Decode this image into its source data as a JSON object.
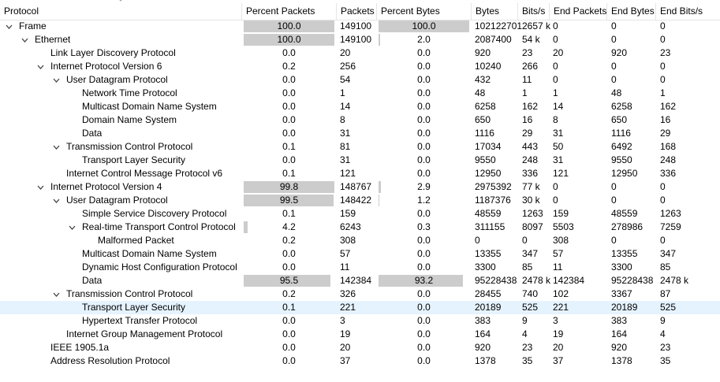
{
  "columns": [
    "Protocol",
    "Percent Packets",
    "Packets",
    "Percent Bytes",
    "Bytes",
    "Bits/s",
    "End Packets",
    "End Bytes",
    "End Bits/s"
  ],
  "rows": [
    {
      "level": 0,
      "expanded": true,
      "protocol": "Frame",
      "pct_packets": "100.0",
      "pct_packets_fill": 100,
      "packets": "149100",
      "pct_bytes": "100.0",
      "pct_bytes_fill": 100,
      "bytes": "102122701",
      "bits_s": "2657 k",
      "end_packets": "0",
      "end_bytes": "0",
      "end_bits_s": "0"
    },
    {
      "level": 1,
      "expanded": true,
      "protocol": "Ethernet",
      "pct_packets": "100.0",
      "pct_packets_fill": 100,
      "packets": "149100",
      "pct_bytes": "2.0",
      "pct_bytes_fill": 2,
      "bytes": "2087400",
      "bits_s": "54 k",
      "end_packets": "0",
      "end_bytes": "0",
      "end_bits_s": "0"
    },
    {
      "level": 2,
      "protocol": "Link Layer Discovery Protocol",
      "pct_packets": "0.0",
      "pct_packets_fill": 0,
      "packets": "20",
      "pct_bytes": "0.0",
      "pct_bytes_fill": 0,
      "bytes": "920",
      "bits_s": "23",
      "end_packets": "20",
      "end_bytes": "920",
      "end_bits_s": "23"
    },
    {
      "level": 2,
      "expanded": true,
      "protocol": "Internet Protocol Version 6",
      "pct_packets": "0.2",
      "pct_packets_fill": 0,
      "packets": "256",
      "pct_bytes": "0.0",
      "pct_bytes_fill": 0,
      "bytes": "10240",
      "bits_s": "266",
      "end_packets": "0",
      "end_bytes": "0",
      "end_bits_s": "0"
    },
    {
      "level": 3,
      "expanded": true,
      "protocol": "User Datagram Protocol",
      "pct_packets": "0.0",
      "pct_packets_fill": 0,
      "packets": "54",
      "pct_bytes": "0.0",
      "pct_bytes_fill": 0,
      "bytes": "432",
      "bits_s": "11",
      "end_packets": "0",
      "end_bytes": "0",
      "end_bits_s": "0"
    },
    {
      "level": 4,
      "protocol": "Network Time Protocol",
      "pct_packets": "0.0",
      "pct_packets_fill": 0,
      "packets": "1",
      "pct_bytes": "0.0",
      "pct_bytes_fill": 0,
      "bytes": "48",
      "bits_s": "1",
      "end_packets": "1",
      "end_bytes": "48",
      "end_bits_s": "1"
    },
    {
      "level": 4,
      "protocol": "Multicast Domain Name System",
      "pct_packets": "0.0",
      "pct_packets_fill": 0,
      "packets": "14",
      "pct_bytes": "0.0",
      "pct_bytes_fill": 0,
      "bytes": "6258",
      "bits_s": "162",
      "end_packets": "14",
      "end_bytes": "6258",
      "end_bits_s": "162"
    },
    {
      "level": 4,
      "protocol": "Domain Name System",
      "pct_packets": "0.0",
      "pct_packets_fill": 0,
      "packets": "8",
      "pct_bytes": "0.0",
      "pct_bytes_fill": 0,
      "bytes": "650",
      "bits_s": "16",
      "end_packets": "8",
      "end_bytes": "650",
      "end_bits_s": "16"
    },
    {
      "level": 4,
      "protocol": "Data",
      "pct_packets": "0.0",
      "pct_packets_fill": 0,
      "packets": "31",
      "pct_bytes": "0.0",
      "pct_bytes_fill": 0,
      "bytes": "1116",
      "bits_s": "29",
      "end_packets": "31",
      "end_bytes": "1116",
      "end_bits_s": "29"
    },
    {
      "level": 3,
      "expanded": true,
      "protocol": "Transmission Control Protocol",
      "pct_packets": "0.1",
      "pct_packets_fill": 0,
      "packets": "81",
      "pct_bytes": "0.0",
      "pct_bytes_fill": 0,
      "bytes": "17034",
      "bits_s": "443",
      "end_packets": "50",
      "end_bytes": "6492",
      "end_bits_s": "168"
    },
    {
      "level": 4,
      "protocol": "Transport Layer Security",
      "pct_packets": "0.0",
      "pct_packets_fill": 0,
      "packets": "31",
      "pct_bytes": "0.0",
      "pct_bytes_fill": 0,
      "bytes": "9550",
      "bits_s": "248",
      "end_packets": "31",
      "end_bytes": "9550",
      "end_bits_s": "248"
    },
    {
      "level": 3,
      "protocol": "Internet Control Message Protocol v6",
      "pct_packets": "0.1",
      "pct_packets_fill": 0,
      "packets": "121",
      "pct_bytes": "0.0",
      "pct_bytes_fill": 0,
      "bytes": "12950",
      "bits_s": "336",
      "end_packets": "121",
      "end_bytes": "12950",
      "end_bits_s": "336"
    },
    {
      "level": 2,
      "expanded": true,
      "protocol": "Internet Protocol Version 4",
      "pct_packets": "99.8",
      "pct_packets_fill": 99.8,
      "packets": "148767",
      "pct_bytes": "2.9",
      "pct_bytes_fill": 2.9,
      "bytes": "2975392",
      "bits_s": "77 k",
      "end_packets": "0",
      "end_bytes": "0",
      "end_bits_s": "0"
    },
    {
      "level": 3,
      "expanded": true,
      "protocol": "User Datagram Protocol",
      "pct_packets": "99.5",
      "pct_packets_fill": 99.5,
      "packets": "148422",
      "pct_bytes": "1.2",
      "pct_bytes_fill": 1.2,
      "bytes": "1187376",
      "bits_s": "30 k",
      "end_packets": "0",
      "end_bytes": "0",
      "end_bits_s": "0"
    },
    {
      "level": 4,
      "protocol": "Simple Service Discovery Protocol",
      "pct_packets": "0.1",
      "pct_packets_fill": 0,
      "packets": "159",
      "pct_bytes": "0.0",
      "pct_bytes_fill": 0,
      "bytes": "48559",
      "bits_s": "1263",
      "end_packets": "159",
      "end_bytes": "48559",
      "end_bits_s": "1263"
    },
    {
      "level": 4,
      "expanded": true,
      "protocol": "Real-time Transport Control Protocol",
      "pct_packets": "4.2",
      "pct_packets_fill": 4.2,
      "packets": "6243",
      "pct_bytes": "0.3",
      "pct_bytes_fill": 0,
      "bytes": "311155",
      "bits_s": "8097",
      "end_packets": "5503",
      "end_bytes": "278986",
      "end_bits_s": "7259"
    },
    {
      "level": 5,
      "protocol": "Malformed Packet",
      "pct_packets": "0.2",
      "pct_packets_fill": 0,
      "packets": "308",
      "pct_bytes": "0.0",
      "pct_bytes_fill": 0,
      "bytes": "0",
      "bits_s": "0",
      "end_packets": "308",
      "end_bytes": "0",
      "end_bits_s": "0"
    },
    {
      "level": 4,
      "protocol": "Multicast Domain Name System",
      "pct_packets": "0.0",
      "pct_packets_fill": 0,
      "packets": "57",
      "pct_bytes": "0.0",
      "pct_bytes_fill": 0,
      "bytes": "13355",
      "bits_s": "347",
      "end_packets": "57",
      "end_bytes": "13355",
      "end_bits_s": "347"
    },
    {
      "level": 4,
      "protocol": "Dynamic Host Configuration Protocol",
      "pct_packets": "0.0",
      "pct_packets_fill": 0,
      "packets": "11",
      "pct_bytes": "0.0",
      "pct_bytes_fill": 0,
      "bytes": "3300",
      "bits_s": "85",
      "end_packets": "11",
      "end_bytes": "3300",
      "end_bits_s": "85"
    },
    {
      "level": 4,
      "protocol": "Data",
      "pct_packets": "95.5",
      "pct_packets_fill": 95.5,
      "packets": "142384",
      "pct_bytes": "93.2",
      "pct_bytes_fill": 93.2,
      "bytes": "95228438",
      "bits_s": "2478 k",
      "end_packets": "142384",
      "end_bytes": "95228438",
      "end_bits_s": "2478 k"
    },
    {
      "level": 3,
      "expanded": true,
      "protocol": "Transmission Control Protocol",
      "pct_packets": "0.2",
      "pct_packets_fill": 0,
      "packets": "326",
      "pct_bytes": "0.0",
      "pct_bytes_fill": 0,
      "bytes": "28455",
      "bits_s": "740",
      "end_packets": "102",
      "end_bytes": "3367",
      "end_bits_s": "87"
    },
    {
      "level": 4,
      "selected": true,
      "protocol": "Transport Layer Security",
      "pct_packets": "0.1",
      "pct_packets_fill": 0,
      "packets": "221",
      "pct_bytes": "0.0",
      "pct_bytes_fill": 0,
      "bytes": "20189",
      "bits_s": "525",
      "end_packets": "221",
      "end_bytes": "20189",
      "end_bits_s": "525"
    },
    {
      "level": 4,
      "protocol": "Hypertext Transfer Protocol",
      "pct_packets": "0.0",
      "pct_packets_fill": 0,
      "packets": "3",
      "pct_bytes": "0.0",
      "pct_bytes_fill": 0,
      "bytes": "383",
      "bits_s": "9",
      "end_packets": "3",
      "end_bytes": "383",
      "end_bits_s": "9"
    },
    {
      "level": 3,
      "protocol": "Internet Group Management Protocol",
      "pct_packets": "0.0",
      "pct_packets_fill": 0,
      "packets": "19",
      "pct_bytes": "0.0",
      "pct_bytes_fill": 0,
      "bytes": "164",
      "bits_s": "4",
      "end_packets": "19",
      "end_bytes": "164",
      "end_bits_s": "4"
    },
    {
      "level": 2,
      "protocol": "IEEE 1905.1a",
      "pct_packets": "0.0",
      "pct_packets_fill": 0,
      "packets": "20",
      "pct_bytes": "0.0",
      "pct_bytes_fill": 0,
      "bytes": "920",
      "bits_s": "23",
      "end_packets": "20",
      "end_bytes": "920",
      "end_bits_s": "23"
    },
    {
      "level": 2,
      "protocol": "Address Resolution Protocol",
      "pct_packets": "0.0",
      "pct_packets_fill": 0,
      "packets": "37",
      "pct_bytes": "0.0",
      "pct_bytes_fill": 0,
      "bytes": "1378",
      "bits_s": "35",
      "end_packets": "37",
      "end_bytes": "1378",
      "end_bits_s": "35"
    }
  ],
  "icons": {
    "expanded": "chevron-down-icon",
    "sort": "sort-ascending-icon"
  },
  "colors": {
    "bar": "#cccccc",
    "selection": "#e5f3ff",
    "grid": "#e5e5e5"
  }
}
